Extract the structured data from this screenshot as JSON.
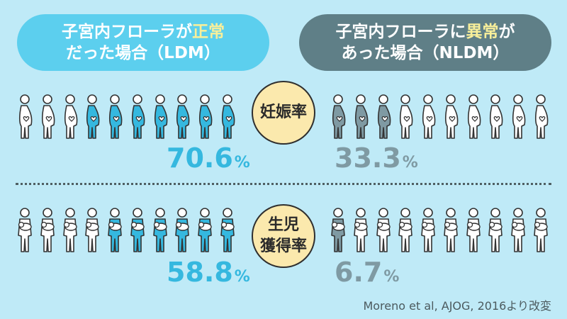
{
  "header": {
    "ldm": {
      "line1_prefix": "子宮内フローラが",
      "line1_highlight": "正常",
      "line2": "だった場合（LDM）"
    },
    "nldm": {
      "line1_prefix": "子宮内フローラに",
      "line1_highlight": "異常",
      "line1_suffix": "が",
      "line2": "あった場合（NLDM）"
    }
  },
  "metrics": {
    "pregnancy": {
      "label": "妊娠率"
    },
    "live_birth": {
      "label_line1": "生児",
      "label_line2": "獲得率"
    }
  },
  "pregnancy": {
    "ldm": {
      "value": "70.6",
      "unit": "%",
      "filled": 7,
      "total": 10
    },
    "nldm": {
      "value": "33.3",
      "unit": "%",
      "filled": 3,
      "total": 10
    }
  },
  "live_birth": {
    "ldm": {
      "value": "58.8",
      "unit": "%",
      "filled": 6,
      "total": 10
    },
    "nldm": {
      "value": "6.7",
      "unit": "%",
      "filled": 1,
      "total": 10
    }
  },
  "source": "Moreno et al, AJOG, 2016より改変",
  "icons": {
    "pregnancy_figure": "pregnant-woman-icon",
    "birth_figure": "parent-with-baby-icon"
  },
  "colors": {
    "background": "#bfeaf7",
    "ldm_accent": "#35b8df",
    "nldm_accent": "#7f9aa3",
    "highlight": "#f8ef9a",
    "badge": "#fbe9ad"
  }
}
